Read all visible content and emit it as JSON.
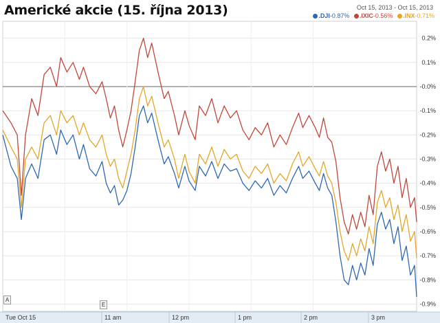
{
  "title": "Americké akcie (15. října 2013)",
  "date_range": "Oct 15, 2013  -  Oct 15, 2013",
  "legend": [
    {
      "symbol": ".DJI",
      "change": "-0.87%",
      "color": "#2d67b3"
    },
    {
      "symbol": ".IXIC",
      "change": "-0.56%",
      "color": "#c0463b"
    },
    {
      "symbol": ".INX",
      "change": "-0.71%",
      "color": "#e3a625"
    }
  ],
  "markers": [
    "A",
    "E"
  ],
  "chart_data": {
    "type": "line",
    "title": "Americké akcie (15. října 2013)",
    "xlabel": "",
    "ylabel": "",
    "x_ticks": [
      "Tue Oct 15",
      "11 am",
      "12 pm",
      "1 pm",
      "2 pm",
      "3 pm"
    ],
    "y_ticks": [
      "0.2%",
      "0.1%",
      "-0.0%",
      "-0.1%",
      "-0.2%",
      "-0.3%",
      "-0.4%",
      "-0.5%",
      "-0.6%",
      "-0.7%",
      "-0.8%",
      "-0.9%"
    ],
    "ylim": [
      -0.93,
      0.27
    ],
    "x_range_minutes": [
      0,
      400
    ],
    "grid": true,
    "series": [
      {
        "name": ".IXIC",
        "color": "#c0463b",
        "points": [
          [
            0,
            -0.1
          ],
          [
            8,
            -0.15
          ],
          [
            14,
            -0.2
          ],
          [
            18,
            -0.45
          ],
          [
            22,
            -0.2
          ],
          [
            28,
            -0.05
          ],
          [
            34,
            -0.12
          ],
          [
            40,
            0.05
          ],
          [
            46,
            0.08
          ],
          [
            52,
            0.0
          ],
          [
            56,
            0.12
          ],
          [
            62,
            0.06
          ],
          [
            68,
            0.1
          ],
          [
            74,
            0.03
          ],
          [
            78,
            0.08
          ],
          [
            84,
            0.0
          ],
          [
            90,
            -0.03
          ],
          [
            96,
            0.02
          ],
          [
            100,
            -0.05
          ],
          [
            104,
            -0.13
          ],
          [
            108,
            -0.08
          ],
          [
            112,
            -0.18
          ],
          [
            116,
            -0.25
          ],
          [
            120,
            -0.18
          ],
          [
            124,
            -0.1
          ],
          [
            128,
            0.02
          ],
          [
            132,
            0.15
          ],
          [
            136,
            0.2
          ],
          [
            140,
            0.12
          ],
          [
            144,
            0.18
          ],
          [
            150,
            0.06
          ],
          [
            156,
            -0.05
          ],
          [
            160,
            -0.02
          ],
          [
            166,
            -0.12
          ],
          [
            170,
            -0.2
          ],
          [
            176,
            -0.1
          ],
          [
            180,
            -0.16
          ],
          [
            186,
            -0.22
          ],
          [
            190,
            -0.08
          ],
          [
            196,
            -0.12
          ],
          [
            202,
            -0.05
          ],
          [
            208,
            -0.15
          ],
          [
            214,
            -0.08
          ],
          [
            220,
            -0.13
          ],
          [
            226,
            -0.1
          ],
          [
            232,
            -0.18
          ],
          [
            238,
            -0.22
          ],
          [
            244,
            -0.17
          ],
          [
            250,
            -0.2
          ],
          [
            256,
            -0.15
          ],
          [
            262,
            -0.25
          ],
          [
            268,
            -0.2
          ],
          [
            274,
            -0.24
          ],
          [
            280,
            -0.17
          ],
          [
            286,
            -0.11
          ],
          [
            290,
            -0.17
          ],
          [
            296,
            -0.12
          ],
          [
            302,
            -0.17
          ],
          [
            306,
            -0.21
          ],
          [
            310,
            -0.13
          ],
          [
            314,
            -0.21
          ],
          [
            318,
            -0.23
          ],
          [
            322,
            -0.31
          ],
          [
            326,
            -0.46
          ],
          [
            330,
            -0.56
          ],
          [
            334,
            -0.61
          ],
          [
            338,
            -0.53
          ],
          [
            342,
            -0.59
          ],
          [
            346,
            -0.52
          ],
          [
            350,
            -0.58
          ],
          [
            354,
            -0.45
          ],
          [
            358,
            -0.53
          ],
          [
            362,
            -0.33
          ],
          [
            366,
            -0.27
          ],
          [
            370,
            -0.35
          ],
          [
            374,
            -0.3
          ],
          [
            378,
            -0.4
          ],
          [
            382,
            -0.33
          ],
          [
            386,
            -0.46
          ],
          [
            390,
            -0.38
          ],
          [
            394,
            -0.5
          ],
          [
            398,
            -0.46
          ],
          [
            400,
            -0.56
          ]
        ]
      },
      {
        "name": ".INX",
        "color": "#e3a625",
        "points": [
          [
            0,
            -0.18
          ],
          [
            8,
            -0.25
          ],
          [
            14,
            -0.3
          ],
          [
            18,
            -0.5
          ],
          [
            22,
            -0.3
          ],
          [
            28,
            -0.25
          ],
          [
            34,
            -0.3
          ],
          [
            40,
            -0.15
          ],
          [
            46,
            -0.12
          ],
          [
            52,
            -0.2
          ],
          [
            56,
            -0.1
          ],
          [
            62,
            -0.15
          ],
          [
            68,
            -0.12
          ],
          [
            74,
            -0.2
          ],
          [
            78,
            -0.15
          ],
          [
            84,
            -0.22
          ],
          [
            90,
            -0.25
          ],
          [
            96,
            -0.2
          ],
          [
            100,
            -0.28
          ],
          [
            104,
            -0.33
          ],
          [
            108,
            -0.3
          ],
          [
            112,
            -0.38
          ],
          [
            116,
            -0.42
          ],
          [
            120,
            -0.35
          ],
          [
            124,
            -0.28
          ],
          [
            128,
            -0.18
          ],
          [
            132,
            -0.05
          ],
          [
            136,
            0.0
          ],
          [
            140,
            -0.08
          ],
          [
            144,
            -0.04
          ],
          [
            150,
            -0.15
          ],
          [
            156,
            -0.25
          ],
          [
            160,
            -0.22
          ],
          [
            166,
            -0.3
          ],
          [
            170,
            -0.38
          ],
          [
            176,
            -0.28
          ],
          [
            180,
            -0.35
          ],
          [
            186,
            -0.4
          ],
          [
            190,
            -0.28
          ],
          [
            196,
            -0.32
          ],
          [
            202,
            -0.25
          ],
          [
            208,
            -0.33
          ],
          [
            214,
            -0.26
          ],
          [
            220,
            -0.3
          ],
          [
            226,
            -0.28
          ],
          [
            232,
            -0.35
          ],
          [
            238,
            -0.38
          ],
          [
            244,
            -0.33
          ],
          [
            250,
            -0.36
          ],
          [
            256,
            -0.32
          ],
          [
            262,
            -0.4
          ],
          [
            268,
            -0.36
          ],
          [
            274,
            -0.39
          ],
          [
            280,
            -0.32
          ],
          [
            286,
            -0.27
          ],
          [
            290,
            -0.33
          ],
          [
            296,
            -0.29
          ],
          [
            302,
            -0.34
          ],
          [
            306,
            -0.37
          ],
          [
            310,
            -0.31
          ],
          [
            314,
            -0.37
          ],
          [
            318,
            -0.4
          ],
          [
            322,
            -0.48
          ],
          [
            326,
            -0.6
          ],
          [
            330,
            -0.68
          ],
          [
            334,
            -0.72
          ],
          [
            338,
            -0.65
          ],
          [
            342,
            -0.7
          ],
          [
            346,
            -0.63
          ],
          [
            350,
            -0.68
          ],
          [
            354,
            -0.58
          ],
          [
            358,
            -0.65
          ],
          [
            362,
            -0.48
          ],
          [
            366,
            -0.43
          ],
          [
            370,
            -0.5
          ],
          [
            374,
            -0.46
          ],
          [
            378,
            -0.55
          ],
          [
            382,
            -0.49
          ],
          [
            386,
            -0.6
          ],
          [
            390,
            -0.53
          ],
          [
            394,
            -0.64
          ],
          [
            398,
            -0.6
          ],
          [
            400,
            -0.71
          ]
        ]
      },
      {
        "name": ".DJI",
        "color": "#2d67b3",
        "points": [
          [
            0,
            -0.2
          ],
          [
            8,
            -0.33
          ],
          [
            14,
            -0.38
          ],
          [
            18,
            -0.55
          ],
          [
            22,
            -0.38
          ],
          [
            28,
            -0.32
          ],
          [
            34,
            -0.38
          ],
          [
            40,
            -0.22
          ],
          [
            46,
            -0.2
          ],
          [
            52,
            -0.28
          ],
          [
            56,
            -0.18
          ],
          [
            62,
            -0.24
          ],
          [
            68,
            -0.2
          ],
          [
            74,
            -0.3
          ],
          [
            78,
            -0.24
          ],
          [
            84,
            -0.34
          ],
          [
            90,
            -0.37
          ],
          [
            96,
            -0.31
          ],
          [
            100,
            -0.4
          ],
          [
            104,
            -0.44
          ],
          [
            108,
            -0.41
          ],
          [
            112,
            -0.49
          ],
          [
            116,
            -0.47
          ],
          [
            120,
            -0.43
          ],
          [
            124,
            -0.36
          ],
          [
            128,
            -0.25
          ],
          [
            132,
            -0.12
          ],
          [
            136,
            -0.08
          ],
          [
            140,
            -0.15
          ],
          [
            144,
            -0.11
          ],
          [
            150,
            -0.22
          ],
          [
            156,
            -0.32
          ],
          [
            160,
            -0.29
          ],
          [
            166,
            -0.36
          ],
          [
            170,
            -0.42
          ],
          [
            176,
            -0.33
          ],
          [
            180,
            -0.39
          ],
          [
            186,
            -0.43
          ],
          [
            190,
            -0.33
          ],
          [
            196,
            -0.37
          ],
          [
            202,
            -0.31
          ],
          [
            208,
            -0.38
          ],
          [
            214,
            -0.32
          ],
          [
            220,
            -0.35
          ],
          [
            226,
            -0.34
          ],
          [
            232,
            -0.4
          ],
          [
            238,
            -0.43
          ],
          [
            244,
            -0.39
          ],
          [
            250,
            -0.42
          ],
          [
            256,
            -0.38
          ],
          [
            262,
            -0.45
          ],
          [
            268,
            -0.41
          ],
          [
            274,
            -0.44
          ],
          [
            280,
            -0.38
          ],
          [
            286,
            -0.33
          ],
          [
            290,
            -0.38
          ],
          [
            296,
            -0.35
          ],
          [
            302,
            -0.4
          ],
          [
            306,
            -0.43
          ],
          [
            310,
            -0.36
          ],
          [
            314,
            -0.42
          ],
          [
            318,
            -0.45
          ],
          [
            322,
            -0.56
          ],
          [
            326,
            -0.7
          ],
          [
            330,
            -0.8
          ],
          [
            334,
            -0.82
          ],
          [
            338,
            -0.74
          ],
          [
            342,
            -0.8
          ],
          [
            346,
            -0.73
          ],
          [
            350,
            -0.78
          ],
          [
            354,
            -0.67
          ],
          [
            358,
            -0.74
          ],
          [
            362,
            -0.57
          ],
          [
            366,
            -0.52
          ],
          [
            370,
            -0.59
          ],
          [
            374,
            -0.55
          ],
          [
            378,
            -0.65
          ],
          [
            382,
            -0.58
          ],
          [
            386,
            -0.72
          ],
          [
            390,
            -0.66
          ],
          [
            394,
            -0.78
          ],
          [
            398,
            -0.74
          ],
          [
            400,
            -0.87
          ]
        ]
      }
    ]
  }
}
